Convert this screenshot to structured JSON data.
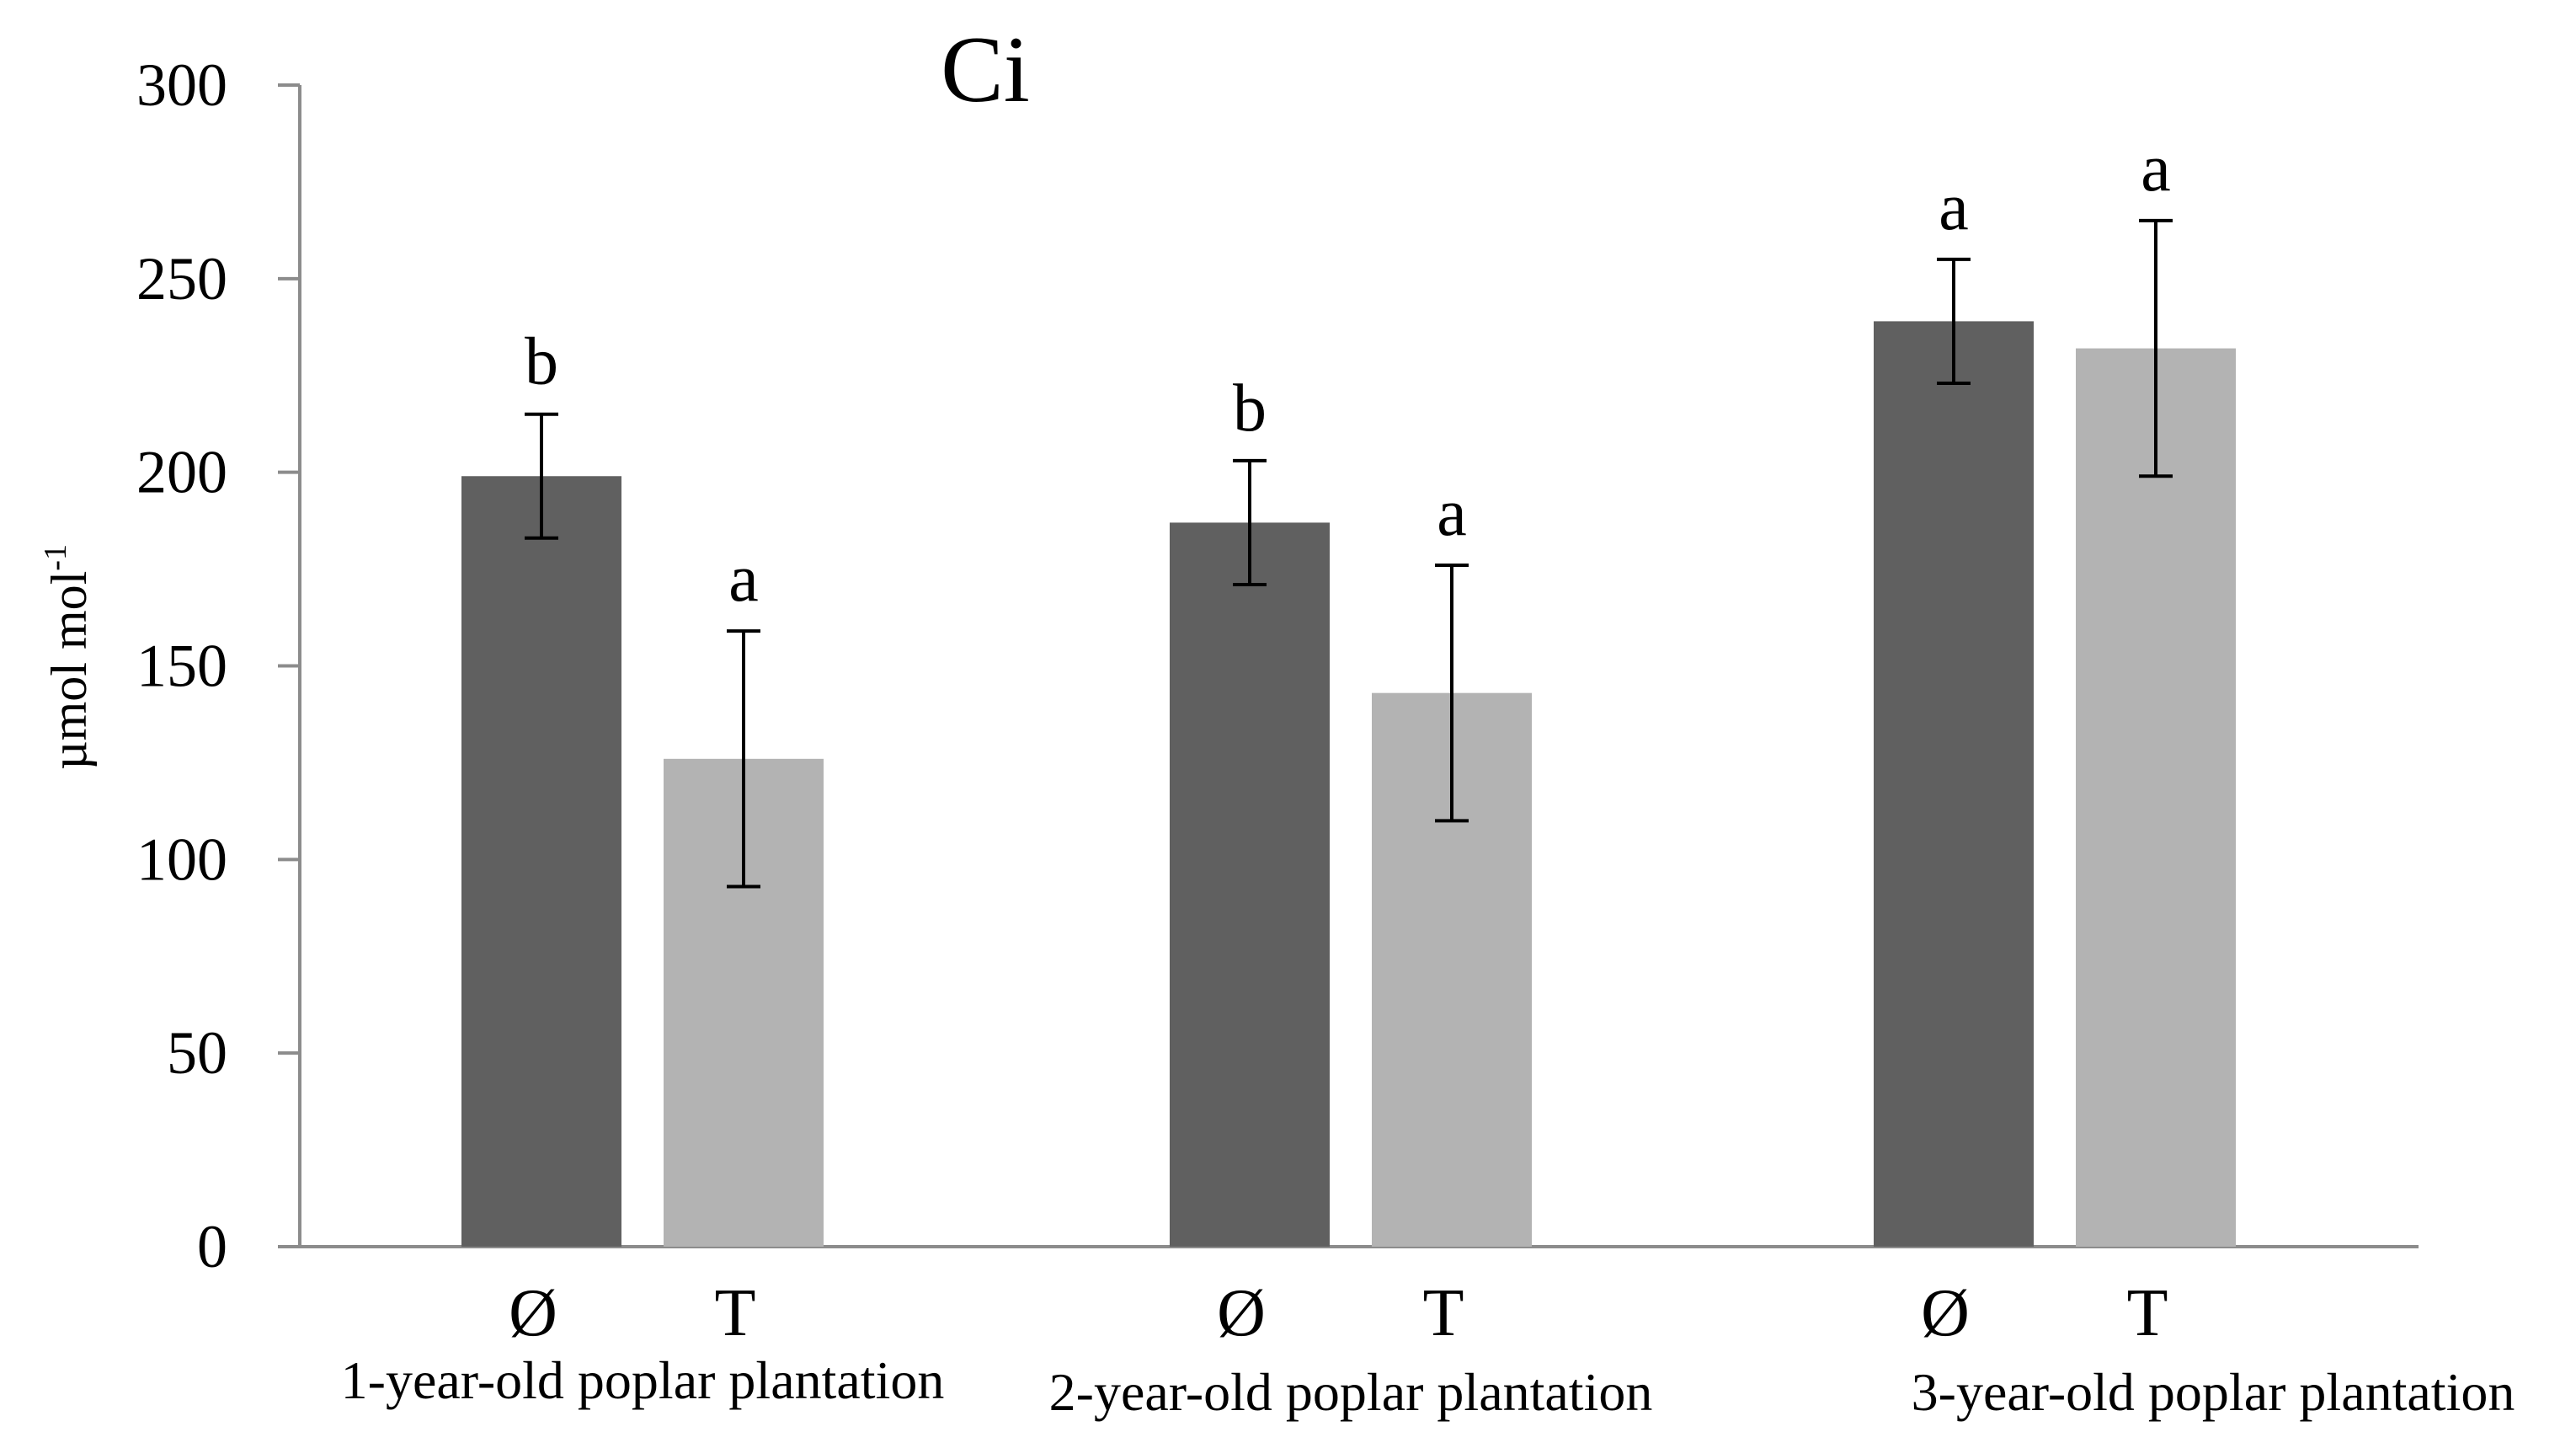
{
  "chart_data": {
    "type": "bar",
    "title": "Ci",
    "ylabel": "µmol mol",
    "ylabel_superscript": "-1",
    "xlabel": "",
    "ylim": [
      0,
      300
    ],
    "yticks": [
      0,
      50,
      100,
      150,
      200,
      250,
      300
    ],
    "groups": [
      {
        "name": "1-year-old poplar plantation",
        "bars": [
          {
            "category": "Ø",
            "value": 199,
            "error": 16,
            "letter": "b"
          },
          {
            "category": "T",
            "value": 126,
            "error": 33,
            "letter": "a"
          }
        ]
      },
      {
        "name": "2-year-old poplar plantation",
        "bars": [
          {
            "category": "Ø",
            "value": 187,
            "error": 16,
            "letter": "b"
          },
          {
            "category": "T",
            "value": 143,
            "error": 33,
            "letter": "a"
          }
        ]
      },
      {
        "name": "3-year-old poplar plantation",
        "bars": [
          {
            "category": "Ø",
            "value": 239,
            "error": 16,
            "letter": "a"
          },
          {
            "category": "T",
            "value": 232,
            "error": 33,
            "letter": "a"
          }
        ]
      }
    ],
    "colors": {
      "Ø": "#606060",
      "T": "#b3b3b3"
    },
    "grid": false,
    "legend": "none"
  }
}
